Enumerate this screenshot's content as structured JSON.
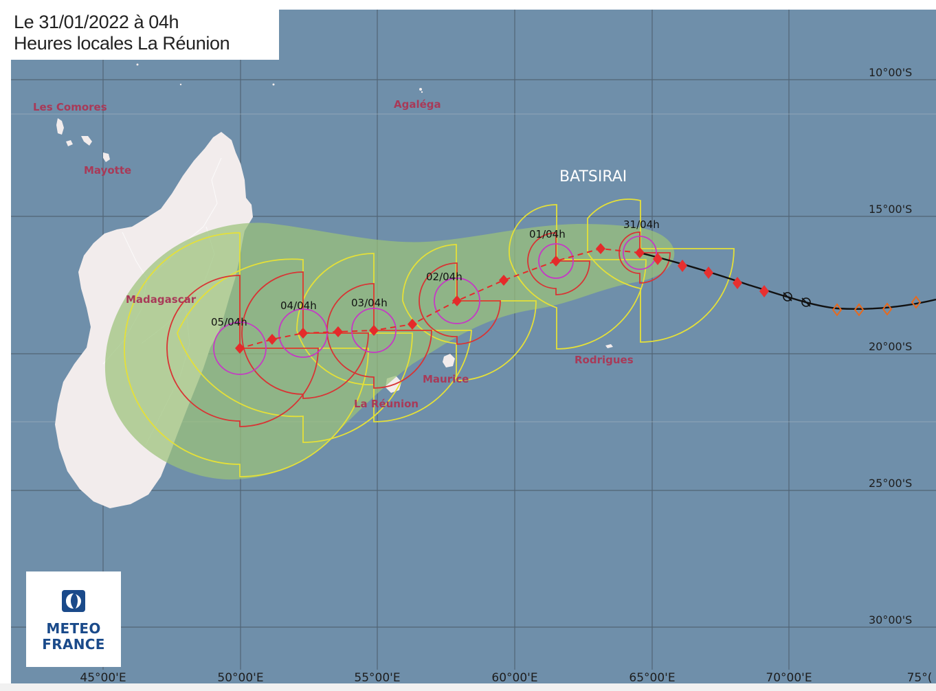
{
  "header": {
    "line1": "Le 31/01/2022 à 04h",
    "line2": "Heures locales La Réunion"
  },
  "storm": {
    "name": "BATSIRAI"
  },
  "places": [
    {
      "name": "Les Comores"
    },
    {
      "name": "Mayotte"
    },
    {
      "name": "Agaléga"
    },
    {
      "name": "Madagascar"
    },
    {
      "name": "Maurice"
    },
    {
      "name": "La Réunion"
    },
    {
      "name": "Rodrigues"
    }
  ],
  "forecast_labels": [
    "31/04h",
    "01/04h",
    "02/04h",
    "03/04h",
    "04/04h",
    "05/04h"
  ],
  "lat_labels": [
    "10°00'S",
    "15°00'S",
    "20°00'S",
    "25°00'S",
    "30°00'S"
  ],
  "lon_labels": [
    "45°00'E",
    "50°00'E",
    "55°00'E",
    "60°00'E",
    "65°00'E",
    "70°00'E",
    "75°("
  ],
  "logo": {
    "line1": "METEO",
    "line2": "FRANCE"
  },
  "colors": {
    "ocean": "#6f8faa",
    "land": "#f2ecec",
    "uncertainty_cone": "#9bc27a",
    "forecast_track": "#e52a2a",
    "past_track": "#111111",
    "early_track": "#e86a1e",
    "wind_radius_outer": "#e5e038",
    "wind_radius_mid": "#d83434",
    "wind_radius_inner": "#c637c6",
    "place_label": "#a83a58"
  },
  "legend_symbols": [
    "tropical-depression-icon",
    "cyclone-icon",
    "disturbance-icon"
  ]
}
